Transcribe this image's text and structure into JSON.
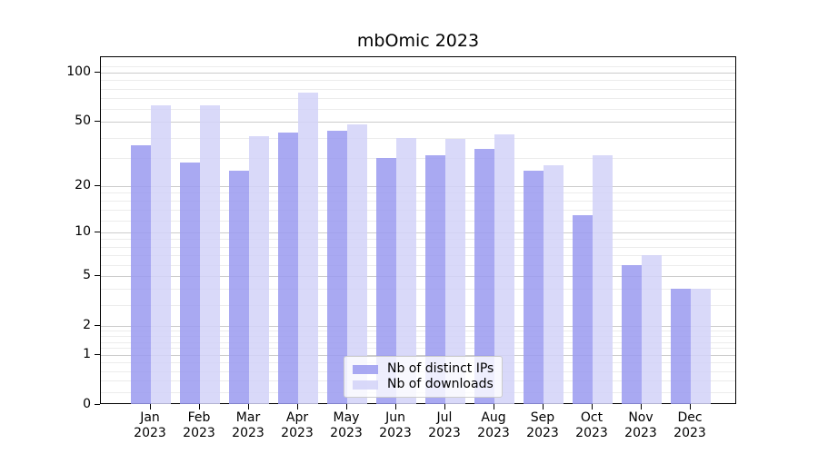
{
  "figure": {
    "title": "mbOmic 2023"
  },
  "chart_data": {
    "type": "bar",
    "title": "mbOmic 2023",
    "x": [
      {
        "month": "Jan",
        "year": "2023"
      },
      {
        "month": "Feb",
        "year": "2023"
      },
      {
        "month": "Mar",
        "year": "2023"
      },
      {
        "month": "Apr",
        "year": "2023"
      },
      {
        "month": "May",
        "year": "2023"
      },
      {
        "month": "Jun",
        "year": "2023"
      },
      {
        "month": "Jul",
        "year": "2023"
      },
      {
        "month": "Aug",
        "year": "2023"
      },
      {
        "month": "Sep",
        "year": "2023"
      },
      {
        "month": "Oct",
        "year": "2023"
      },
      {
        "month": "Nov",
        "year": "2023"
      },
      {
        "month": "Dec",
        "year": "2023"
      }
    ],
    "series": [
      {
        "name": "Nb of distinct IPs",
        "color": "#9a9af0",
        "values": [
          36,
          28,
          25,
          43,
          44,
          30,
          31,
          34,
          25,
          13,
          6,
          4
        ]
      },
      {
        "name": "Nb of downloads",
        "color": "#d2d2f8",
        "values": [
          63,
          63,
          41,
          76,
          48,
          40,
          39,
          42,
          27,
          31,
          7,
          4
        ]
      }
    ],
    "y_axis": {
      "scale": "log1p",
      "tick_labels": [
        "100",
        "50",
        "20",
        "10",
        "5",
        "2",
        "1",
        "0"
      ],
      "tick_values": [
        100,
        50,
        20,
        10,
        5,
        2,
        1,
        0
      ],
      "ylim": [
        0,
        123
      ]
    },
    "grid": true,
    "legend_position": "lower center"
  }
}
